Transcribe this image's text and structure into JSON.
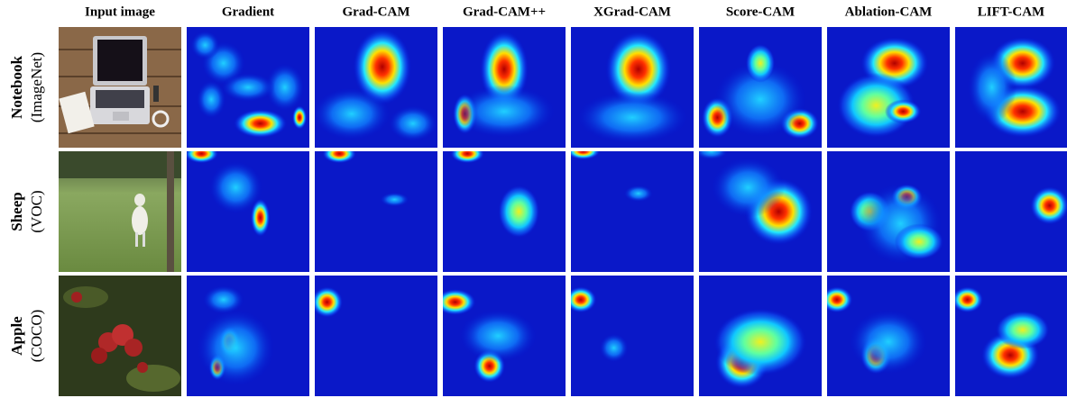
{
  "columns": [
    "Input image",
    "Gradient",
    "Grad-CAM",
    "Grad-CAM++",
    "XGrad-CAM",
    "Score-CAM",
    "Ablation-CAM",
    "LIFT-CAM"
  ],
  "rows": [
    {
      "name": "Notebook",
      "dataset": "(ImageNet)"
    },
    {
      "name": "Sheep",
      "dataset": "(VOC)"
    },
    {
      "name": "Apple",
      "dataset": "(COCO)"
    }
  ]
}
